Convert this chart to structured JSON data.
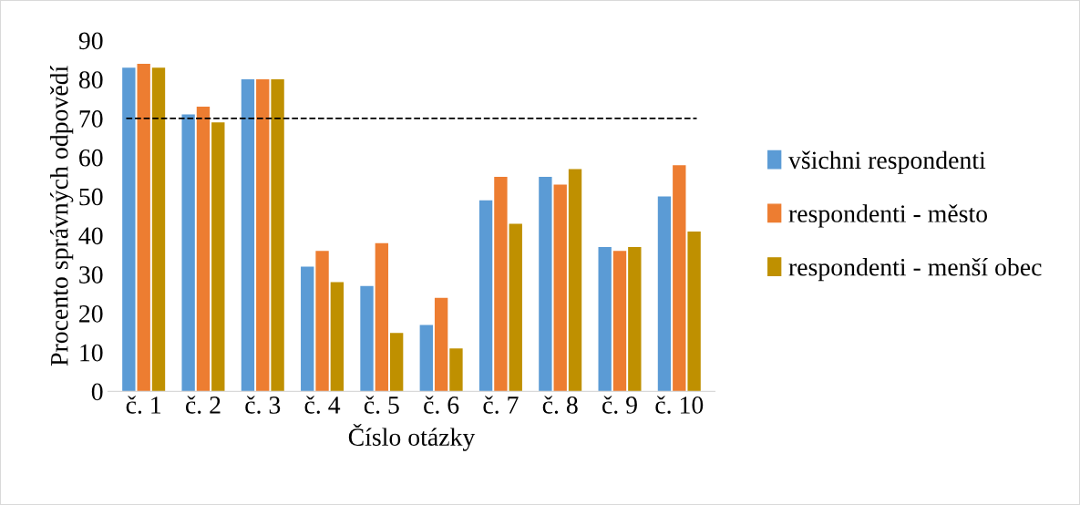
{
  "chart_data": {
    "type": "bar",
    "xlabel": "Číslo otázky",
    "ylabel": "Procento správných odpovědí",
    "categories": [
      "č. 1",
      "č. 2",
      "č. 3",
      "č. 4",
      "č. 5",
      "č. 6",
      "č. 7",
      "č. 8",
      "č. 9",
      "č. 10"
    ],
    "series": [
      {
        "name": "všichni respondenti",
        "color": "#5b9bd5",
        "values": [
          83,
          71,
          80,
          32,
          27,
          17,
          49,
          55,
          37,
          50
        ]
      },
      {
        "name": "respondenti - město",
        "color": "#ed7d31",
        "values": [
          84,
          73,
          80,
          36,
          38,
          24,
          55,
          53,
          36,
          58
        ]
      },
      {
        "name": "respondenti - menší obec",
        "color": "#bf9000",
        "values": [
          83,
          69,
          80,
          28,
          15,
          11,
          43,
          57,
          37,
          41
        ]
      }
    ],
    "ylim": [
      0,
      90
    ],
    "yticks": [
      0,
      10,
      20,
      30,
      40,
      50,
      60,
      70,
      80,
      90
    ],
    "ref_lines": [
      {
        "axis": "y",
        "value": 70,
        "color": "#000000",
        "line_style": "dashed"
      }
    ],
    "grid": false,
    "legend": "right"
  }
}
